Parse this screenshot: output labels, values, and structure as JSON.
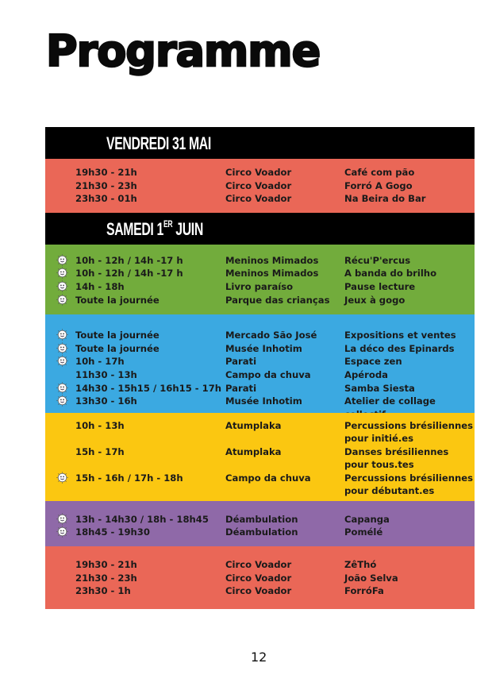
{
  "title": "Programme",
  "page_number": "12",
  "colors": {
    "red": "#ea6757",
    "green": "#72ac3c",
    "blue": "#3ba9e1",
    "yellow": "#fbc711",
    "purple": "#8f69a8",
    "header": "#000000"
  },
  "days": [
    {
      "label": "VENDREDI 31 MAI",
      "sup": ""
    },
    {
      "label": "SAMEDI 1",
      "sup": "ER",
      "label_after": " JUIN"
    }
  ],
  "blocks": [
    {
      "day": 0,
      "color": "#ea6757",
      "rows": [
        {
          "icon": false,
          "time": "19h30 - 21h",
          "venue": "Circo Voador",
          "event": "Café com pão"
        },
        {
          "icon": false,
          "time": "21h30 - 23h",
          "venue": "Circo Voador",
          "event": "Forró A Gogo"
        },
        {
          "icon": false,
          "time": "23h30 - 01h",
          "venue": "Circo Voador",
          "event": "Na Beira do Bar"
        }
      ]
    },
    {
      "day": 1,
      "color": "#72ac3c",
      "rows": [
        {
          "icon": true,
          "time": "10h - 12h / 14h -17 h",
          "venue": "Meninos Mimados",
          "event": "Récu'P'ercus"
        },
        {
          "icon": true,
          "time": "10h - 12h / 14h -17 h",
          "venue": "Meninos Mimados",
          "event": "A banda do brilho"
        },
        {
          "icon": true,
          "time": "14h - 18h",
          "venue": "Livro paraíso",
          "event": "Pause lecture"
        },
        {
          "icon": true,
          "time": "Toute la journée",
          "venue": "Parque das crianças",
          "event": "Jeux à gogo"
        }
      ]
    },
    {
      "day": 1,
      "color": "#3ba9e1",
      "rows": [
        {
          "icon": true,
          "time": "Toute la journée",
          "venue": "Mercado São José",
          "event": "Expositions et ventes"
        },
        {
          "icon": true,
          "time": "Toute la journée",
          "venue": "Musée Inhotim",
          "event": "La déco des Epinards"
        },
        {
          "icon": true,
          "time": "10h - 17h",
          "venue": "Parati",
          "event": "Espace zen"
        },
        {
          "icon": false,
          "time": "11h30 - 13h",
          "venue": "Campo da chuva",
          "event": "Apéroda"
        },
        {
          "icon": true,
          "time": "14h30 - 15h15 / 16h15 - 17h",
          "venue": "Parati",
          "event": "Samba Siesta"
        },
        {
          "icon": true,
          "time": "13h30 - 16h",
          "venue": "Musée Inhotim",
          "event": "Atelier de collage collectif"
        }
      ]
    },
    {
      "day": 1,
      "color": "#fbc711",
      "rows": [
        {
          "icon": false,
          "time": "10h - 13h",
          "venue": "Atumplaka",
          "event": "Percussions brésiliennes pour initié.es",
          "tall": true
        },
        {
          "icon": false,
          "time": "15h - 17h",
          "venue": "Atumplaka",
          "event": "Danses brésiliennes pour tous.tes",
          "tall": true
        },
        {
          "icon": true,
          "time": "15h - 16h / 17h - 18h",
          "venue": "Campo da chuva",
          "event": "Percussions brésiliennes pour débutant.es",
          "tall": true
        }
      ]
    },
    {
      "day": 1,
      "color": "#8f69a8",
      "rows": [
        {
          "icon": true,
          "time": "13h - 14h30 / 18h - 18h45",
          "venue": "Déambulation",
          "event": "Capanga"
        },
        {
          "icon": true,
          "time": "18h45 - 19h30",
          "venue": "Déambulation",
          "event": "Pomélé"
        }
      ]
    },
    {
      "day": 1,
      "color": "#ea6757",
      "rows": [
        {
          "icon": false,
          "time": "19h30 - 21h",
          "venue": "Circo Voador",
          "event": "ZêThó"
        },
        {
          "icon": false,
          "time": "21h30 - 23h",
          "venue": "Circo Voador",
          "event": "João Selva"
        },
        {
          "icon": false,
          "time": "23h30 - 1h",
          "venue": "Circo Voador",
          "event": "ForróFa"
        }
      ]
    }
  ]
}
